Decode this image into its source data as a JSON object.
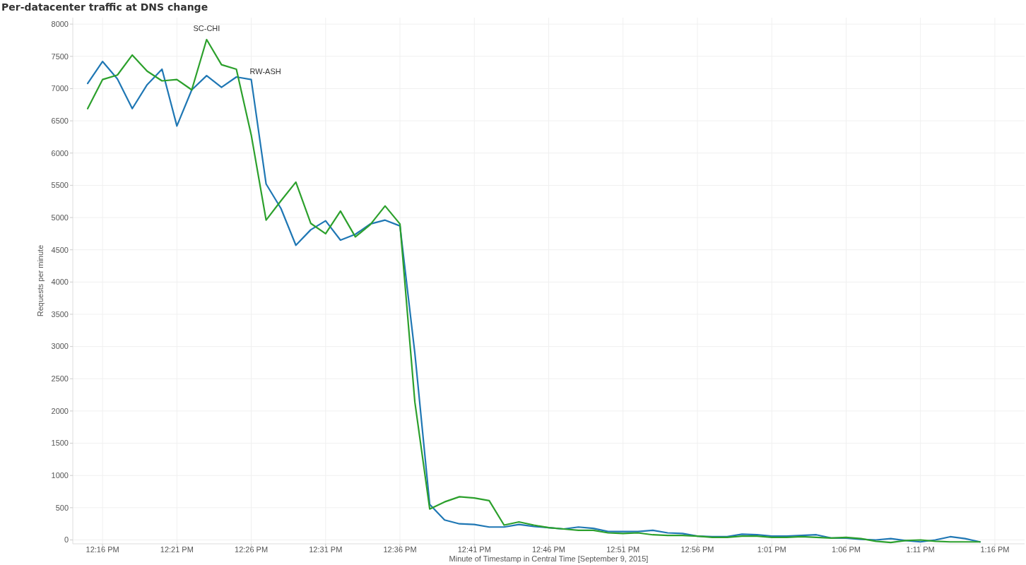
{
  "chart_data": {
    "type": "line",
    "title": "Per-datacenter traffic at DNS change",
    "xlabel": "Minute of Timestamp in Central Time [September 9, 2015]",
    "ylabel": "Requests per minute",
    "x": [
      "2015-09-09T12:15",
      "2015-09-09T12:16",
      "2015-09-09T12:17",
      "2015-09-09T12:18",
      "2015-09-09T12:19",
      "2015-09-09T12:20",
      "2015-09-09T12:21",
      "2015-09-09T12:22",
      "2015-09-09T12:23",
      "2015-09-09T12:24",
      "2015-09-09T12:25",
      "2015-09-09T12:26",
      "2015-09-09T12:27",
      "2015-09-09T12:28",
      "2015-09-09T12:29",
      "2015-09-09T12:30",
      "2015-09-09T12:31",
      "2015-09-09T12:32",
      "2015-09-09T12:33",
      "2015-09-09T12:34",
      "2015-09-09T12:35",
      "2015-09-09T12:36",
      "2015-09-09T12:37",
      "2015-09-09T12:38",
      "2015-09-09T12:39",
      "2015-09-09T12:40",
      "2015-09-09T12:41",
      "2015-09-09T12:42",
      "2015-09-09T12:43",
      "2015-09-09T12:44",
      "2015-09-09T12:45",
      "2015-09-09T12:46",
      "2015-09-09T12:47",
      "2015-09-09T12:48",
      "2015-09-09T12:49",
      "2015-09-09T12:50",
      "2015-09-09T12:51",
      "2015-09-09T12:52",
      "2015-09-09T12:53",
      "2015-09-09T12:54",
      "2015-09-09T12:55",
      "2015-09-09T12:56",
      "2015-09-09T12:57",
      "2015-09-09T12:58",
      "2015-09-09T12:59",
      "2015-09-09T13:00",
      "2015-09-09T13:01",
      "2015-09-09T13:02",
      "2015-09-09T13:03",
      "2015-09-09T13:04",
      "2015-09-09T13:05",
      "2015-09-09T13:06",
      "2015-09-09T13:07",
      "2015-09-09T13:08",
      "2015-09-09T13:09",
      "2015-09-09T13:10",
      "2015-09-09T13:11",
      "2015-09-09T13:12",
      "2015-09-09T13:13",
      "2015-09-09T13:14",
      "2015-09-09T13:15"
    ],
    "series": [
      {
        "color": "#1f77b4",
        "values": [
          7080,
          7420,
          7150,
          6690,
          7060,
          7300,
          6420,
          6980,
          7200,
          7020,
          7180,
          7140,
          5520,
          5140,
          4570,
          4810,
          4950,
          4650,
          4740,
          4900,
          4960,
          4870,
          2900,
          550,
          310,
          250,
          240,
          200,
          200,
          240,
          210,
          190,
          170,
          200,
          180,
          130,
          130,
          130,
          150,
          110,
          100,
          60,
          50,
          50,
          90,
          80,
          60,
          60,
          70,
          80,
          30,
          30,
          10,
          0,
          20,
          -10,
          -30,
          0,
          50,
          20,
          -30
        ]
      },
      {
        "color": "#2ca02c",
        "values": [
          6690,
          7140,
          7210,
          7520,
          7270,
          7120,
          7140,
          6980,
          7760,
          7370,
          7300,
          6280,
          4960,
          5260,
          5550,
          4910,
          4750,
          5100,
          4700,
          4890,
          5180,
          4900,
          2140,
          480,
          590,
          670,
          650,
          610,
          230,
          280,
          230,
          190,
          170,
          150,
          150,
          110,
          100,
          110,
          80,
          70,
          70,
          60,
          40,
          40,
          60,
          60,
          40,
          40,
          50,
          40,
          30,
          40,
          20,
          -20,
          -40,
          -10,
          0,
          -20,
          -30,
          -30,
          -30
        ]
      }
    ],
    "annotations": [
      {
        "text": "SC-CHI",
        "x": "2015-09-09T12:23",
        "y": 7760
      },
      {
        "text": "RW-ASH",
        "x": "2015-09-09T12:26",
        "y": 7140
      }
    ],
    "xlim": [
      "2015-09-09T12:14",
      "2015-09-09T13:18"
    ],
    "ylim": [
      -60,
      8100
    ],
    "xticks": [
      {
        "value": "2015-09-09T12:16",
        "label": "12:16 PM"
      },
      {
        "value": "2015-09-09T12:21",
        "label": "12:21 PM"
      },
      {
        "value": "2015-09-09T12:26",
        "label": "12:26 PM"
      },
      {
        "value": "2015-09-09T12:31",
        "label": "12:31 PM"
      },
      {
        "value": "2015-09-09T12:36",
        "label": "12:36 PM"
      },
      {
        "value": "2015-09-09T12:41",
        "label": "12:41 PM"
      },
      {
        "value": "2015-09-09T12:46",
        "label": "12:46 PM"
      },
      {
        "value": "2015-09-09T12:51",
        "label": "12:51 PM"
      },
      {
        "value": "2015-09-09T12:56",
        "label": "12:56 PM"
      },
      {
        "value": "2015-09-09T13:01",
        "label": "1:01 PM"
      },
      {
        "value": "2015-09-09T13:06",
        "label": "1:06 PM"
      },
      {
        "value": "2015-09-09T13:11",
        "label": "1:11 PM"
      },
      {
        "value": "2015-09-09T13:16",
        "label": "1:16 PM"
      }
    ],
    "yticks": [
      0,
      500,
      1000,
      1500,
      2000,
      2500,
      3000,
      3500,
      4000,
      4500,
      5000,
      5500,
      6000,
      6500,
      7000,
      7500,
      8000
    ],
    "grid": true,
    "line_style": "solid",
    "marker": "none"
  }
}
